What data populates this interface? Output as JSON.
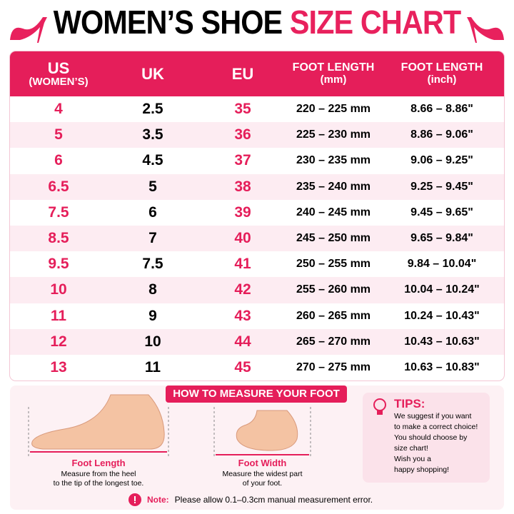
{
  "header": {
    "title_part1": "WOMEN’S SHOE",
    "title_part2": "SIZE CHART"
  },
  "table": {
    "columns": [
      [
        "US",
        "(WOMEN’S)"
      ],
      [
        "UK"
      ],
      [
        "EU"
      ],
      [
        "FOOT LENGTH",
        "(mm)"
      ],
      [
        "FOOT LENGTH",
        "(inch)"
      ]
    ],
    "rows": [
      [
        "4",
        "2.5",
        "35",
        "220 – 225 mm",
        "8.66 – 8.86\""
      ],
      [
        "5",
        "3.5",
        "36",
        "225 – 230 mm",
        "8.86 – 9.06\""
      ],
      [
        "6",
        "4.5",
        "37",
        "230 – 235 mm",
        "9.06 – 9.25\""
      ],
      [
        "6.5",
        "5",
        "38",
        "235 – 240 mm",
        "9.25 – 9.45\""
      ],
      [
        "7.5",
        "6",
        "39",
        "240 – 245 mm",
        "9.45 – 9.65\""
      ],
      [
        "8.5",
        "7",
        "40",
        "245 – 250 mm",
        "9.65 – 9.84\""
      ],
      [
        "9.5",
        "7.5",
        "41",
        "250 – 255 mm",
        "9.84 – 10.04\""
      ],
      [
        "10",
        "8",
        "42",
        "255 – 260 mm",
        "10.04 – 10.24\""
      ],
      [
        "11",
        "9",
        "43",
        "260 – 265 mm",
        "10.24 – 10.43\""
      ],
      [
        "12",
        "10",
        "44",
        "265 – 270 mm",
        "10.43 – 10.63\""
      ],
      [
        "13",
        "11",
        "45",
        "270 – 275 mm",
        "10.63 – 10.83\""
      ]
    ]
  },
  "measure": {
    "title": "HOW TO MEASURE YOUR FOOT",
    "length": {
      "label": "Foot Length",
      "desc": [
        "Measure from the heel",
        "to the tip of the longest toe."
      ]
    },
    "width": {
      "label": "Foot Width",
      "desc": [
        "Measure the widest part",
        "of your foot."
      ]
    }
  },
  "tips": {
    "title": "TIPS:",
    "lines": [
      "We suggest if you want",
      "to make a correct choice!",
      "You should choose by",
      "size chart!",
      "Wish you a",
      "happy shopping!"
    ]
  },
  "note": {
    "label": "Note:",
    "text": "Please allow 0.1–0.3cm manual measurement error."
  }
}
